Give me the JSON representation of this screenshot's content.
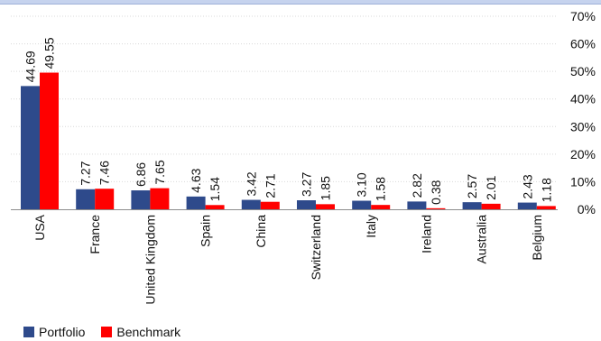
{
  "header": {
    "title": ""
  },
  "chart_data": {
    "type": "bar",
    "title": "",
    "xlabel": "",
    "ylabel": "",
    "categories": [
      "USA",
      "France",
      "United Kingdom",
      "Spain",
      "China",
      "Switzerland",
      "Italy",
      "Ireland",
      "Australia",
      "Belgium"
    ],
    "series": [
      {
        "name": "Portfolio",
        "color": "#2e4a8b",
        "values": [
          44.69,
          7.27,
          6.86,
          4.63,
          3.42,
          3.27,
          3.1,
          2.82,
          2.57,
          2.43
        ],
        "labels": [
          "44.69",
          "7.27",
          "6.86",
          "4.63",
          "3.42",
          "3.27",
          "3.10",
          "2.82",
          "2.57",
          "2.43"
        ]
      },
      {
        "name": "Benchmark",
        "color": "#ff0000",
        "values": [
          49.55,
          7.46,
          7.65,
          1.54,
          2.71,
          1.85,
          1.58,
          0.38,
          2.01,
          1.18
        ],
        "labels": [
          "49.55",
          "7.46",
          "7.65",
          "1.54",
          "2.71",
          "1.85",
          "1.58",
          "0.38",
          "2.01",
          "1.18"
        ]
      }
    ],
    "ylim": [
      0,
      70
    ],
    "yticks": [
      0,
      10,
      20,
      30,
      40,
      50,
      60,
      70
    ],
    "ytick_labels": [
      "0%",
      "10%",
      "20%",
      "30%",
      "40%",
      "50%",
      "60%",
      "70%"
    ],
    "y_axis_side": "right",
    "grid": true,
    "legend_position": "bottom-left"
  },
  "legend": {
    "portfolio_label": "Portfolio",
    "benchmark_label": "Benchmark"
  }
}
